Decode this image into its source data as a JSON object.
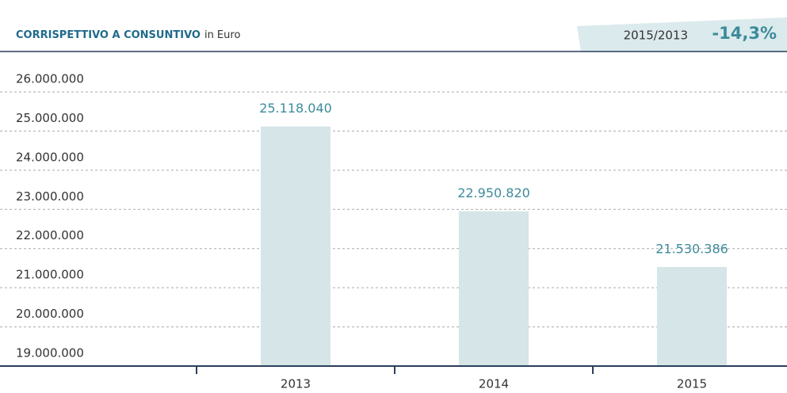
{
  "chart_data": {
    "type": "bar",
    "title": "CORRISPETTIVO A CONSUNTIVO",
    "subtitle": "in Euro",
    "comparison": {
      "label": "2015/2013",
      "value": "-14,3%"
    },
    "categories": [
      "2013",
      "2014",
      "2015"
    ],
    "values": [
      25118040,
      22950820,
      21530386
    ],
    "value_labels": [
      "25.118.040",
      "22.950.820",
      "21.530.386"
    ],
    "color": "#d5e5e8",
    "label_color": "#3d8b9b",
    "ylim": [
      19000000,
      26000000
    ],
    "yticks": [
      {
        "value": 19000000,
        "label": "19.000.000"
      },
      {
        "value": 20000000,
        "label": "20.000.000"
      },
      {
        "value": 21000000,
        "label": "21.000.000"
      },
      {
        "value": 22000000,
        "label": "22.000.000"
      },
      {
        "value": 23000000,
        "label": "23.000.000"
      },
      {
        "value": 24000000,
        "label": "24.000.000"
      },
      {
        "value": 25000000,
        "label": "25.000.000"
      },
      {
        "value": 26000000,
        "label": "26.000.000"
      }
    ],
    "grid": true
  }
}
